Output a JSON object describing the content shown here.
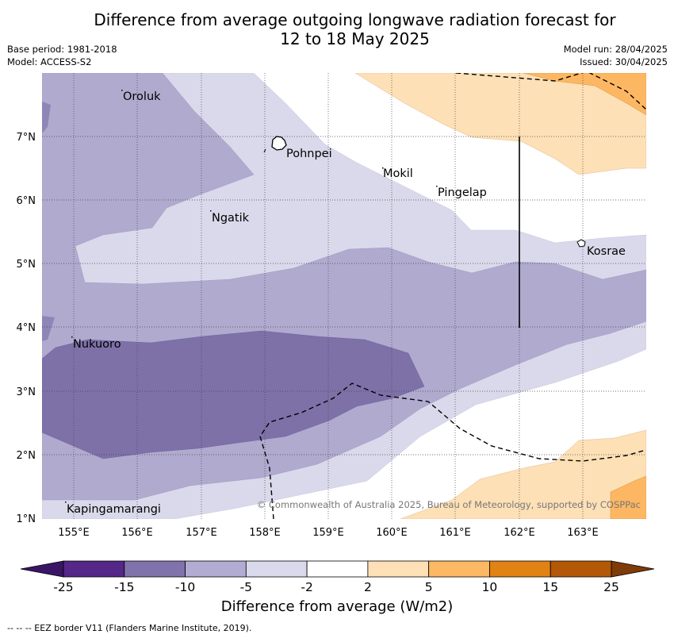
{
  "title_line1": "Difference from average outgoing longwave radiation forecast for",
  "title_line2": "12 to 18 May 2025",
  "meta_left": {
    "base_period": "Base period: 1981-2018",
    "model": "Model: ACCESS-S2"
  },
  "meta_right": {
    "model_run": "Model run: 28/04/2025",
    "issued": "Issued: 30/04/2025"
  },
  "map": {
    "lon_labels": [
      "155°E",
      "156°E",
      "157°E",
      "158°E",
      "159°E",
      "160°E",
      "161°E",
      "162°E",
      "163°E"
    ],
    "lat_labels": [
      "7°N",
      "6°N",
      "5°N",
      "4°N",
      "3°N",
      "2°N",
      "1°N"
    ],
    "places": [
      {
        "name": "Oroluk"
      },
      {
        "name": "Pohnpei"
      },
      {
        "name": "Mokil"
      },
      {
        "name": "Pingelap"
      },
      {
        "name": "Ngatik"
      },
      {
        "name": "Kosrae"
      },
      {
        "name": "Nukuoro"
      },
      {
        "name": "Kapingamarangi"
      }
    ],
    "copyright": "© Commonwealth of Australia 2025, Bureau of Meteorology, supported by COSPPac",
    "colors": {
      "minus25": "#4b2a7a",
      "minus15_minus10": "#7e71a8",
      "minus10_minus5": "#b0aacf",
      "minus5_minus2": "#d9d9eb",
      "minus2_2": "#ffffff",
      "2_5": "#fde0b6",
      "5_10": "#fdb762",
      "10_15": "#e0821c",
      "15_25": "#b35806"
    }
  },
  "colorbar": {
    "ticks": [
      "-25",
      "-15",
      "-10",
      "-5",
      "-2",
      "2",
      "5",
      "10",
      "15",
      "25"
    ],
    "colors": [
      "#542788",
      "#8073ac",
      "#b2abd2",
      "#d8daeb",
      "#ffffff",
      "#fee0b6",
      "#fdb863",
      "#e08214",
      "#b35806"
    ],
    "under_color": "#3a1566",
    "over_color": "#7f3b08",
    "label": "Difference from average (W/m2)"
  },
  "eez_note": "--  --  -- EEZ border V11 (Flanders Marine Institute, 2019)."
}
